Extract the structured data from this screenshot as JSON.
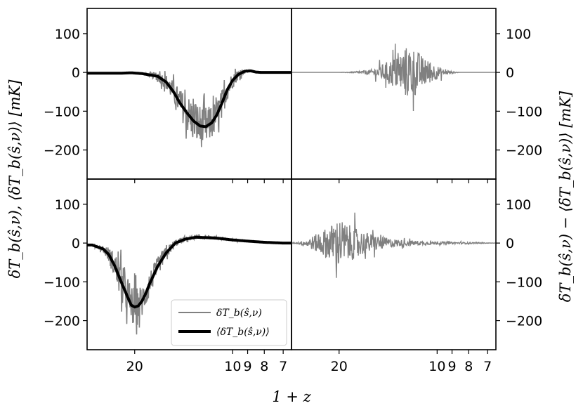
{
  "chart_data": [
    {
      "type": "line",
      "panel": "top-left",
      "ylim": [
        -275,
        165
      ],
      "yticks": [
        100,
        0,
        -100,
        -200
      ],
      "ytick_labels": [
        "100",
        "0",
        "−100",
        "−200"
      ],
      "xticks": [
        20,
        10,
        9,
        8,
        7
      ],
      "xtick_labels": [
        "",
        "",
        "",
        "",
        ""
      ],
      "series": [
        {
          "role": "noisy",
          "color": "#808080",
          "x": [
            25,
            22,
            20.5,
            19,
            17,
            16,
            15.2,
            14.5,
            13.8,
            13.2,
            12.6,
            12.1,
            11.6,
            11.2,
            10.8,
            10.4,
            10.0,
            9.6,
            9.2,
            8.8,
            8.5,
            8.2,
            7.8,
            7.4,
            7.0,
            6.6
          ],
          "y": [
            -2,
            -2,
            -1,
            -3,
            -10,
            -25,
            -50,
            -80,
            -105,
            -125,
            -138,
            -140,
            -130,
            -110,
            -80,
            -45,
            -20,
            -5,
            3,
            4,
            1,
            0,
            0,
            0,
            0,
            0
          ],
          "noise": [
            0,
            0,
            0,
            0,
            15,
            25,
            35,
            45,
            60,
            70,
            70,
            65,
            55,
            50,
            45,
            35,
            25,
            15,
            5,
            2,
            0,
            0,
            0,
            0,
            0,
            0
          ]
        },
        {
          "role": "mean",
          "color": "#000000",
          "x": [
            25,
            22,
            20.5,
            19,
            17,
            16,
            15.2,
            14.5,
            13.8,
            13.2,
            12.6,
            12.1,
            11.6,
            11.2,
            10.8,
            10.4,
            10.0,
            9.6,
            9.2,
            8.8,
            8.5,
            8.2,
            7.8,
            7.4,
            7.0,
            6.6
          ],
          "y": [
            -2,
            -2,
            -1,
            -3,
            -10,
            -25,
            -50,
            -80,
            -105,
            -125,
            -138,
            -140,
            -130,
            -110,
            -80,
            -45,
            -20,
            -5,
            3,
            4,
            1,
            0,
            0,
            0,
            0,
            0
          ]
        }
      ]
    },
    {
      "type": "line",
      "panel": "top-right",
      "ylim": [
        -275,
        165
      ],
      "yticks": [
        100,
        0,
        -100,
        -200
      ],
      "ytick_labels": [
        "100",
        "0",
        "−100",
        "−200"
      ],
      "ylabel": "δT_b(ŝ,ν) − ⟨δT_b(ŝ,ν)⟩ [mK]",
      "series": [
        {
          "role": "residual",
          "color": "#808080",
          "x": [
            25,
            22,
            20,
            18,
            16,
            15,
            14,
            13.5,
            13,
            12.5,
            12,
            11.5,
            11,
            10.5,
            10,
            9.5,
            9,
            8.5,
            8,
            7.5,
            7,
            6.6
          ],
          "amp": [
            0,
            0,
            0,
            2,
            10,
            25,
            45,
            60,
            75,
            95,
            100,
            80,
            55,
            40,
            25,
            10,
            4,
            0,
            0,
            0,
            0,
            0
          ]
        }
      ]
    },
    {
      "type": "line",
      "panel": "bottom-left",
      "ylim": [
        -275,
        165
      ],
      "yticks": [
        100,
        0,
        -100,
        -200
      ],
      "ytick_labels": [
        "100",
        "0",
        "−100",
        "−200"
      ],
      "ylabel": "δT_b(ŝ,ν), ⟨δT_b(ŝ,ν)⟩ [mK]",
      "xticks": [
        20,
        10,
        9,
        8,
        7
      ],
      "xtick_labels": [
        "20",
        "10",
        "9",
        "8",
        "7"
      ],
      "xlabel": "1 + z",
      "series": [
        {
          "role": "noisy",
          "name": "δT_b(ŝ,ν)",
          "color": "#808080",
          "x": [
            27,
            25,
            24,
            23,
            22,
            21,
            20.5,
            20,
            19.5,
            19,
            18.5,
            18,
            17,
            16,
            15,
            14,
            13,
            12,
            11,
            10,
            9,
            8,
            7,
            6.6
          ],
          "y": [
            -5,
            -15,
            -30,
            -60,
            -100,
            -140,
            -160,
            -165,
            -162,
            -150,
            -130,
            -105,
            -60,
            -25,
            0,
            10,
            15,
            14,
            12,
            8,
            5,
            2,
            0,
            0
          ],
          "noise": [
            2,
            10,
            25,
            45,
            60,
            65,
            65,
            65,
            60,
            55,
            50,
            40,
            30,
            20,
            12,
            8,
            6,
            5,
            4,
            3,
            2,
            1,
            0,
            0
          ]
        },
        {
          "role": "mean",
          "name": "⟨δT_b(ŝ,ν)⟩",
          "color": "#000000",
          "x": [
            27,
            25,
            24,
            23,
            22,
            21,
            20.5,
            20,
            19.5,
            19,
            18.5,
            18,
            17,
            16,
            15,
            14,
            13,
            12,
            11,
            10,
            9,
            8,
            7,
            6.6
          ],
          "y": [
            -5,
            -15,
            -30,
            -60,
            -100,
            -140,
            -160,
            -165,
            -162,
            -150,
            -130,
            -105,
            -60,
            -25,
            0,
            10,
            15,
            14,
            12,
            8,
            5,
            2,
            0,
            0
          ]
        }
      ]
    },
    {
      "type": "line",
      "panel": "bottom-right",
      "ylim": [
        -275,
        165
      ],
      "yticks": [
        100,
        0,
        -100,
        -200
      ],
      "ytick_labels": [
        "100",
        "0",
        "−100",
        "−200"
      ],
      "xticks": [
        20,
        10,
        9,
        8,
        7
      ],
      "xtick_labels": [
        "20",
        "10",
        "9",
        "8",
        "7"
      ],
      "series": [
        {
          "role": "residual",
          "color": "#808080",
          "x": [
            27,
            25,
            23,
            22,
            21,
            20,
            19,
            18,
            17,
            16,
            15,
            14,
            13,
            12,
            11,
            10,
            9,
            8,
            7,
            6.6
          ],
          "amp": [
            2,
            15,
            40,
            55,
            70,
            95,
            70,
            60,
            45,
            35,
            25,
            18,
            12,
            10,
            7,
            5,
            4,
            3,
            1,
            0
          ]
        }
      ]
    }
  ],
  "legend": {
    "placement": "bottom-right of bottom-left panel",
    "entries": [
      {
        "label": "δT_b(ŝ,ν)",
        "color": "#808080"
      },
      {
        "label": "⟨δT_b(ŝ,ν)⟩",
        "color": "#000000"
      }
    ]
  },
  "colors": {
    "noisy": "#808080",
    "mean": "#000000",
    "frame": "#000000"
  }
}
